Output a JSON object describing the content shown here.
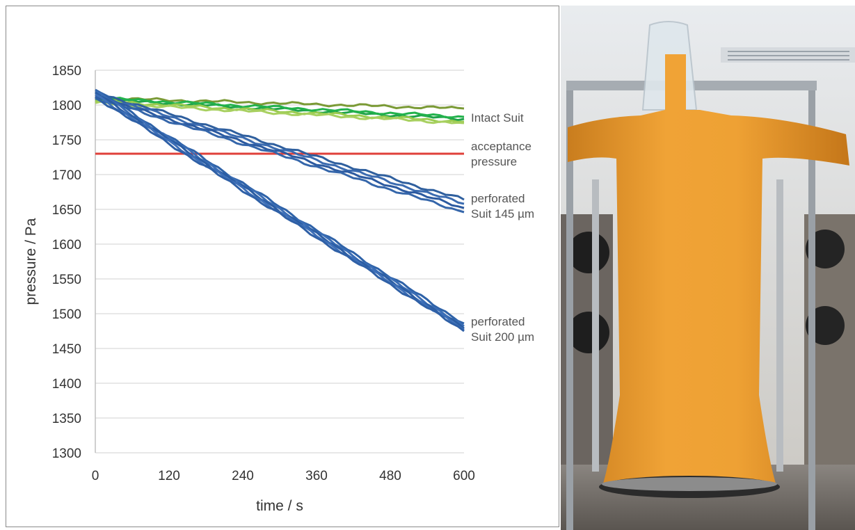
{
  "chart_data": {
    "type": "line",
    "title": "",
    "xlabel": "time / s",
    "ylabel": "pressure / Pa",
    "xlim": [
      0,
      600
    ],
    "ylim": [
      1300,
      1850
    ],
    "xticks": [
      0,
      120,
      240,
      360,
      480,
      600
    ],
    "yticks": [
      1300,
      1350,
      1400,
      1450,
      1500,
      1550,
      1600,
      1650,
      1700,
      1750,
      1800,
      1850
    ],
    "grid": true,
    "legend": "none",
    "reference_line": {
      "y": 1730,
      "color": "#e0403a"
    },
    "annotations": [
      {
        "lines": [
          "Intact Suit"
        ],
        "x": 600,
        "y": 1782
      },
      {
        "lines": [
          "acceptance",
          "pressure"
        ],
        "x": 600,
        "y": 1730
      },
      {
        "lines": [
          "perforated",
          "Suit 145 µm"
        ],
        "x": 600,
        "y": 1655
      },
      {
        "lines": [
          "perforated",
          "Suit 200 µm"
        ],
        "x": 600,
        "y": 1478
      }
    ],
    "series": [
      {
        "x": [
          0,
          600
        ],
        "y": [
          1810,
          1795
        ],
        "color": "#7a9a35"
      },
      {
        "x": [
          0,
          600
        ],
        "y": [
          1808,
          1780
        ],
        "color": "#1fa34a"
      },
      {
        "x": [
          0,
          600
        ],
        "y": [
          1810,
          1783
        ],
        "color": "#22b24c"
      },
      {
        "x": [
          0,
          600
        ],
        "y": [
          1806,
          1776
        ],
        "color": "#9acb50"
      },
      {
        "x": [
          0,
          600
        ],
        "y": [
          1803,
          1774
        ],
        "color": "#a8d060"
      },
      {
        "x": [
          0,
          600
        ],
        "y": [
          1818,
          1664
        ],
        "color": "#2f5f9e"
      },
      {
        "x": [
          0,
          600
        ],
        "y": [
          1815,
          1658
        ],
        "color": "#3b6bb0"
      },
      {
        "x": [
          0,
          600
        ],
        "y": [
          1812,
          1652
        ],
        "color": "#2c5aa0"
      },
      {
        "x": [
          0,
          600
        ],
        "y": [
          1810,
          1646
        ],
        "color": "#3566aa"
      },
      {
        "x": [
          0,
          600
        ],
        "y": [
          1822,
          1486
        ],
        "color": "#2e62a8"
      },
      {
        "x": [
          0,
          600
        ],
        "y": [
          1820,
          1482
        ],
        "color": "#3a6db5"
      },
      {
        "x": [
          0,
          600
        ],
        "y": [
          1818,
          1479
        ],
        "color": "#2b5da3"
      },
      {
        "x": [
          0,
          600
        ],
        "y": [
          1815,
          1477
        ],
        "color": "#3d6fb8"
      },
      {
        "x": [
          0,
          600
        ],
        "y": [
          1812,
          1475
        ],
        "color": "#2f60a6"
      }
    ]
  }
}
